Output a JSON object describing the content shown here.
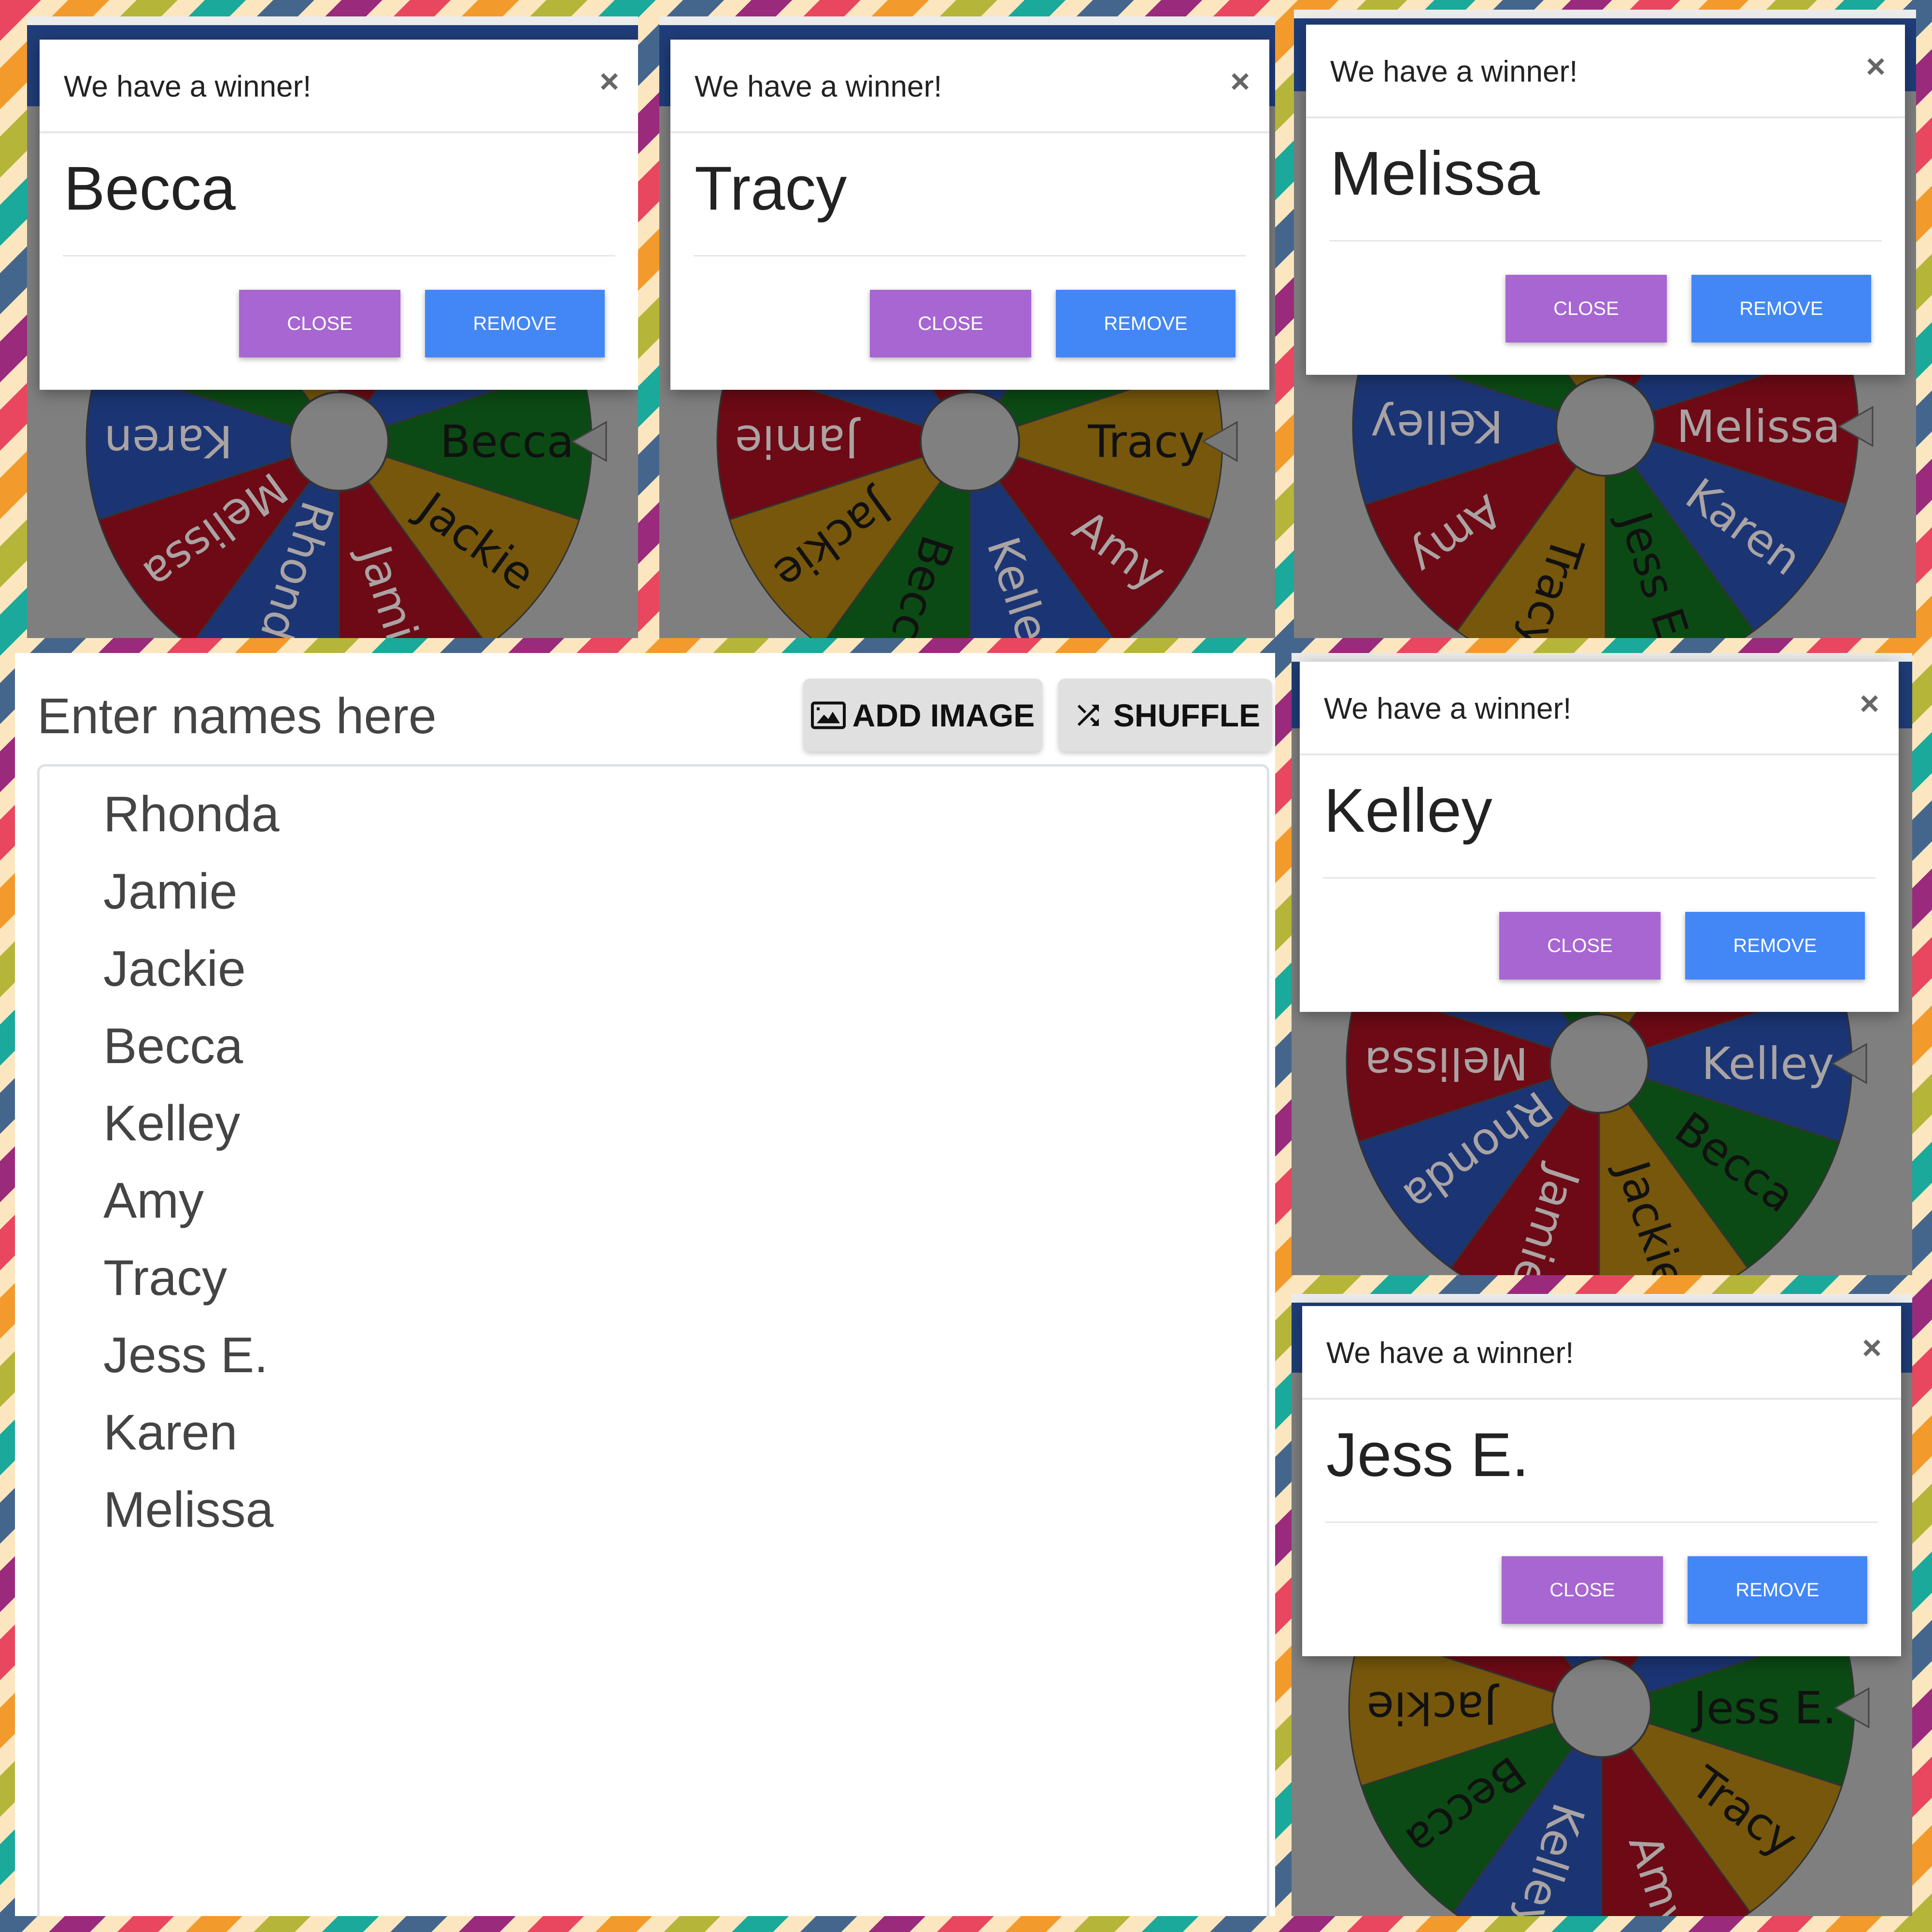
{
  "wheel": {
    "segments": [
      {
        "name": "Tracy",
        "color": "yellow"
      },
      {
        "name": "Amy",
        "color": "red"
      },
      {
        "name": "Kelley",
        "color": "blue"
      },
      {
        "name": "Becca",
        "color": "green"
      },
      {
        "name": "Jackie",
        "color": "yellow"
      },
      {
        "name": "Jamie",
        "color": "red"
      },
      {
        "name": "Rhonda",
        "color": "blue"
      },
      {
        "name": "Melissa",
        "color": "red"
      },
      {
        "name": "Karen",
        "color": "blue"
      },
      {
        "name": "Jess E.",
        "color": "green"
      }
    ],
    "colors": {
      "green": "#0b4a14",
      "yellow": "#76570b",
      "red": "#6d0a15",
      "blue": "#1b3574",
      "hub": "#808080"
    }
  },
  "modal": {
    "title": "We have a winner!",
    "close_x": "×",
    "close_label": "CLOSE",
    "remove_label": "REMOVE",
    "close_color": "#a766d1",
    "remove_color": "#4287f5"
  },
  "panels": [
    {
      "winner": "Becca"
    },
    {
      "winner": "Tracy"
    },
    {
      "winner": "Melissa"
    },
    {
      "winner": "Kelley"
    },
    {
      "winner": "Jess E."
    }
  ],
  "editor": {
    "title": "Enter names here",
    "add_image_label": "ADD IMAGE",
    "shuffle_label": "SHUFFLE",
    "names": [
      "Rhonda",
      "Jamie",
      "Jackie",
      "Becca",
      "Kelley",
      "Amy",
      "Tracy",
      "Jess E.",
      "Karen",
      "Melissa"
    ]
  }
}
